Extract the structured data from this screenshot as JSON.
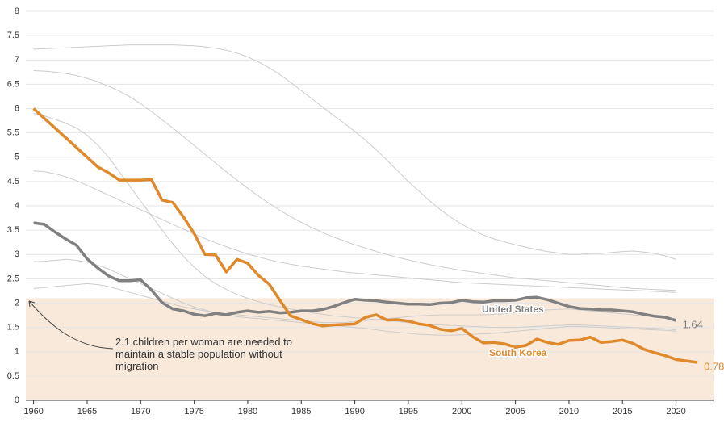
{
  "chart_data": {
    "type": "line",
    "x": [
      1960,
      1961,
      1962,
      1963,
      1964,
      1965,
      1966,
      1967,
      1968,
      1969,
      1970,
      1971,
      1972,
      1973,
      1974,
      1975,
      1976,
      1977,
      1978,
      1979,
      1980,
      1981,
      1982,
      1983,
      1984,
      1985,
      1986,
      1987,
      1988,
      1989,
      1990,
      1991,
      1992,
      1993,
      1994,
      1995,
      1996,
      1997,
      1998,
      1999,
      2000,
      2001,
      2002,
      2003,
      2004,
      2005,
      2006,
      2007,
      2008,
      2009,
      2010,
      2011,
      2012,
      2013,
      2014,
      2015,
      2016,
      2017,
      2018,
      2019,
      2020,
      2021,
      2022
    ],
    "xlim": [
      1959.5,
      2023.5
    ],
    "xticks": [
      1960,
      1965,
      1970,
      1975,
      1980,
      1985,
      1990,
      1995,
      2000,
      2005,
      2010,
      2015,
      2020
    ],
    "ylim": [
      0,
      8
    ],
    "yticks": [
      0,
      0.5,
      1,
      1.5,
      2,
      2.5,
      3,
      3.5,
      4,
      4.5,
      5,
      5.5,
      6,
      6.5,
      7,
      7.5,
      8
    ],
    "grid": true,
    "band": {
      "ymax": 2.1,
      "color": "#f9e9da",
      "annotation": "2.1 children per woman are needed to maintain a stable population without migration"
    },
    "series": [
      {
        "color": "#cccccc",
        "values": [
          7.22,
          7.23,
          7.24,
          7.25,
          7.26,
          7.27,
          7.28,
          7.29,
          7.3,
          7.31,
          7.31,
          7.31,
          7.31,
          7.31,
          7.3,
          7.29,
          7.27,
          7.24,
          7.2,
          7.14,
          7.06,
          6.96,
          6.84,
          6.7,
          6.54,
          6.37,
          6.2,
          6.03,
          5.86,
          5.7,
          5.53,
          5.35,
          5.15,
          4.94,
          4.72,
          4.5,
          4.3,
          4.1,
          3.92,
          3.76,
          3.62,
          3.5,
          3.4,
          3.32,
          3.26,
          3.2,
          3.15,
          3.1,
          3.06,
          3.03,
          3.0,
          3.0,
          3.02,
          3.02,
          3.04,
          3.06,
          3.07,
          3.05,
          3.02,
          2.97,
          2.9,
          null,
          null
        ]
      },
      {
        "color": "#cccccc",
        "values": [
          6.78,
          6.77,
          6.75,
          6.72,
          6.68,
          6.62,
          6.55,
          6.46,
          6.36,
          6.24,
          6.1,
          5.94,
          5.77,
          5.6,
          5.42,
          5.24,
          5.06,
          4.88,
          4.7,
          4.53,
          4.36,
          4.2,
          4.05,
          3.91,
          3.78,
          3.66,
          3.55,
          3.45,
          3.36,
          3.28,
          3.2,
          3.13,
          3.06,
          3.0,
          2.94,
          2.89,
          2.84,
          2.79,
          2.75,
          2.71,
          2.67,
          2.64,
          2.61,
          2.58,
          2.55,
          2.52,
          2.5,
          2.48,
          2.46,
          2.44,
          2.42,
          2.4,
          2.38,
          2.36,
          2.34,
          2.32,
          2.3,
          2.29,
          2.28,
          2.27,
          2.26,
          null,
          null
        ]
      },
      {
        "color": "#cccccc",
        "values": [
          5.9,
          5.85,
          5.78,
          5.7,
          5.6,
          5.45,
          5.25,
          5.0,
          4.7,
          4.4,
          4.1,
          3.8,
          3.5,
          3.22,
          2.96,
          2.74,
          2.55,
          2.4,
          2.28,
          2.18,
          2.1,
          2.03,
          1.97,
          1.92,
          1.88,
          1.84,
          1.8,
          1.77,
          1.74,
          1.72,
          1.7,
          1.68,
          1.66,
          1.64,
          1.62,
          1.6,
          1.58,
          1.56,
          1.55,
          1.54,
          1.53,
          1.52,
          1.51,
          1.5,
          1.5,
          1.5,
          1.51,
          1.52,
          1.53,
          1.54,
          1.55,
          1.55,
          1.54,
          1.53,
          1.52,
          1.51,
          1.5,
          1.49,
          1.48,
          1.47,
          1.45,
          null,
          null
        ]
      },
      {
        "color": "#cccccc",
        "values": [
          2.85,
          2.86,
          2.88,
          2.9,
          2.88,
          2.84,
          2.78,
          2.7,
          2.6,
          2.5,
          2.4,
          2.3,
          2.2,
          2.1,
          2.0,
          1.92,
          1.86,
          1.8,
          1.76,
          1.72,
          1.7,
          1.68,
          1.66,
          1.64,
          1.62,
          1.6,
          1.58,
          1.56,
          1.54,
          1.52,
          1.5,
          1.48,
          1.45,
          1.42,
          1.4,
          1.38,
          1.36,
          1.35,
          1.34,
          1.34,
          1.35,
          1.36,
          1.37,
          1.38,
          1.4,
          1.42,
          1.44,
          1.46,
          1.48,
          1.5,
          1.52,
          1.52,
          1.51,
          1.5,
          1.49,
          1.48,
          1.47,
          1.46,
          1.45,
          1.44,
          1.42,
          null,
          null
        ]
      },
      {
        "color": "#cccccc",
        "values": [
          2.3,
          2.32,
          2.34,
          2.36,
          2.38,
          2.4,
          2.38,
          2.34,
          2.28,
          2.22,
          2.16,
          2.1,
          2.04,
          1.98,
          1.92,
          1.88,
          1.84,
          1.8,
          1.78,
          1.76,
          1.74,
          1.72,
          1.7,
          1.68,
          1.66,
          1.64,
          1.62,
          1.6,
          1.6,
          1.6,
          1.62,
          1.64,
          1.66,
          1.68,
          1.7,
          1.72,
          1.74,
          1.75,
          1.76,
          1.76,
          1.76,
          1.76,
          1.76,
          1.77,
          1.78,
          1.8,
          1.82,
          1.84,
          1.86,
          1.87,
          1.88,
          1.86,
          1.84,
          1.82,
          1.8,
          1.78,
          1.76,
          1.74,
          1.72,
          1.7,
          1.68,
          null,
          null
        ]
      },
      {
        "color": "#cccccc",
        "values": [
          4.72,
          4.7,
          4.66,
          4.6,
          4.52,
          4.42,
          4.32,
          4.22,
          4.12,
          4.02,
          3.92,
          3.82,
          3.72,
          3.62,
          3.52,
          3.42,
          3.33,
          3.24,
          3.16,
          3.08,
          3.01,
          2.95,
          2.89,
          2.84,
          2.8,
          2.76,
          2.73,
          2.7,
          2.67,
          2.64,
          2.62,
          2.6,
          2.58,
          2.56,
          2.54,
          2.52,
          2.5,
          2.48,
          2.46,
          2.44,
          2.42,
          2.41,
          2.4,
          2.39,
          2.38,
          2.37,
          2.36,
          2.35,
          2.34,
          2.33,
          2.32,
          2.31,
          2.3,
          2.29,
          2.28,
          2.27,
          2.26,
          2.25,
          2.24,
          2.23,
          2.22,
          null,
          null
        ]
      },
      {
        "name": "United States",
        "color": "#808080",
        "values": [
          3.65,
          3.62,
          3.46,
          3.32,
          3.19,
          2.91,
          2.72,
          2.56,
          2.46,
          2.46,
          2.48,
          2.27,
          2.01,
          1.88,
          1.84,
          1.77,
          1.74,
          1.79,
          1.76,
          1.81,
          1.84,
          1.81,
          1.83,
          1.8,
          1.81,
          1.84,
          1.84,
          1.87,
          1.93,
          2.01,
          2.08,
          2.06,
          2.05,
          2.02,
          2.0,
          1.98,
          1.98,
          1.97,
          2.0,
          2.01,
          2.06,
          2.03,
          2.02,
          2.05,
          2.05,
          2.06,
          2.11,
          2.12,
          2.07,
          2.0,
          1.93,
          1.89,
          1.88,
          1.86,
          1.86,
          1.84,
          1.82,
          1.77,
          1.73,
          1.71,
          1.64,
          null,
          null
        ]
      },
      {
        "name": "South Korea",
        "color": "#e0892a",
        "values": [
          6.0,
          5.8,
          5.6,
          5.4,
          5.2,
          5.0,
          4.8,
          4.68,
          4.53,
          4.53,
          4.53,
          4.54,
          4.12,
          4.07,
          3.77,
          3.43,
          3.0,
          2.99,
          2.64,
          2.9,
          2.82,
          2.57,
          2.39,
          2.06,
          1.74,
          1.66,
          1.58,
          1.53,
          1.55,
          1.56,
          1.57,
          1.71,
          1.76,
          1.65,
          1.66,
          1.63,
          1.57,
          1.54,
          1.46,
          1.43,
          1.48,
          1.31,
          1.18,
          1.19,
          1.16,
          1.09,
          1.13,
          1.26,
          1.19,
          1.15,
          1.23,
          1.24,
          1.3,
          1.19,
          1.21,
          1.24,
          1.17,
          1.05,
          0.98,
          0.92,
          0.84,
          0.81,
          0.78
        ]
      }
    ]
  }
}
